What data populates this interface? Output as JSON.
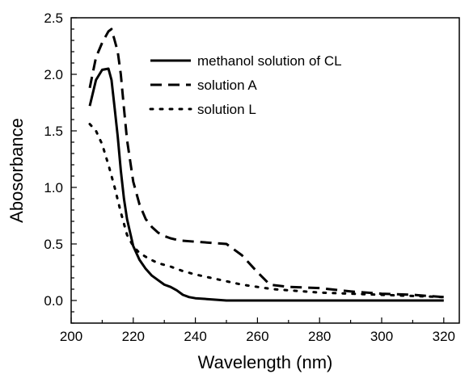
{
  "chart_data": {
    "type": "line",
    "xlabel": "Wavelength (nm)",
    "ylabel": "Abosorbance",
    "xlim": [
      200,
      325
    ],
    "ylim": [
      -0.2,
      2.5
    ],
    "x_ticks": [
      200,
      220,
      240,
      260,
      280,
      300,
      320
    ],
    "x_tick_labels": [
      "200",
      "220",
      "240",
      "260",
      "280",
      "300",
      "320"
    ],
    "y_ticks": [
      0.0,
      0.5,
      1.0,
      1.5,
      2.0,
      2.5
    ],
    "y_tick_labels": [
      "0.0",
      "0.5",
      "1.0",
      "1.5",
      "2.0",
      "2.5"
    ],
    "grid": false,
    "legend_position": "top-right",
    "series": [
      {
        "name": "methanol solution of CL",
        "style": "solid",
        "color": "#000000",
        "points": [
          [
            206,
            1.72
          ],
          [
            208,
            1.95
          ],
          [
            210,
            2.04
          ],
          [
            212,
            2.05
          ],
          [
            213,
            1.95
          ],
          [
            214,
            1.7
          ],
          [
            215,
            1.45
          ],
          [
            216,
            1.15
          ],
          [
            217,
            0.9
          ],
          [
            218,
            0.72
          ],
          [
            220,
            0.48
          ],
          [
            222,
            0.36
          ],
          [
            224,
            0.28
          ],
          [
            226,
            0.22
          ],
          [
            228,
            0.18
          ],
          [
            230,
            0.14
          ],
          [
            232,
            0.12
          ],
          [
            234,
            0.09
          ],
          [
            236,
            0.05
          ],
          [
            238,
            0.03
          ],
          [
            240,
            0.02
          ],
          [
            245,
            0.01
          ],
          [
            250,
            0.0
          ],
          [
            260,
            0.0
          ],
          [
            280,
            0.0
          ],
          [
            300,
            0.0
          ],
          [
            320,
            0.0
          ]
        ]
      },
      {
        "name": "solution A",
        "style": "dashed",
        "color": "#000000",
        "points": [
          [
            206,
            1.88
          ],
          [
            208,
            2.15
          ],
          [
            210,
            2.28
          ],
          [
            212,
            2.38
          ],
          [
            213,
            2.4
          ],
          [
            214,
            2.3
          ],
          [
            215,
            2.2
          ],
          [
            216,
            2.0
          ],
          [
            217,
            1.7
          ],
          [
            218,
            1.42
          ],
          [
            220,
            1.05
          ],
          [
            222,
            0.85
          ],
          [
            224,
            0.72
          ],
          [
            226,
            0.65
          ],
          [
            228,
            0.6
          ],
          [
            230,
            0.57
          ],
          [
            232,
            0.55
          ],
          [
            235,
            0.53
          ],
          [
            240,
            0.52
          ],
          [
            245,
            0.51
          ],
          [
            250,
            0.5
          ],
          [
            255,
            0.4
          ],
          [
            260,
            0.25
          ],
          [
            264,
            0.14
          ],
          [
            270,
            0.12
          ],
          [
            280,
            0.11
          ],
          [
            290,
            0.08
          ],
          [
            300,
            0.06
          ],
          [
            310,
            0.05
          ],
          [
            320,
            0.03
          ]
        ]
      },
      {
        "name": "solution L",
        "style": "dotted",
        "color": "#000000",
        "points": [
          [
            206,
            1.56
          ],
          [
            208,
            1.5
          ],
          [
            210,
            1.38
          ],
          [
            212,
            1.2
          ],
          [
            214,
            1.0
          ],
          [
            216,
            0.78
          ],
          [
            218,
            0.58
          ],
          [
            220,
            0.48
          ],
          [
            222,
            0.42
          ],
          [
            225,
            0.37
          ],
          [
            228,
            0.33
          ],
          [
            232,
            0.3
          ],
          [
            236,
            0.26
          ],
          [
            240,
            0.23
          ],
          [
            245,
            0.2
          ],
          [
            250,
            0.17
          ],
          [
            255,
            0.14
          ],
          [
            260,
            0.12
          ],
          [
            265,
            0.1
          ],
          [
            270,
            0.09
          ],
          [
            280,
            0.07
          ],
          [
            290,
            0.06
          ],
          [
            300,
            0.05
          ],
          [
            310,
            0.04
          ],
          [
            320,
            0.03
          ]
        ]
      }
    ]
  }
}
